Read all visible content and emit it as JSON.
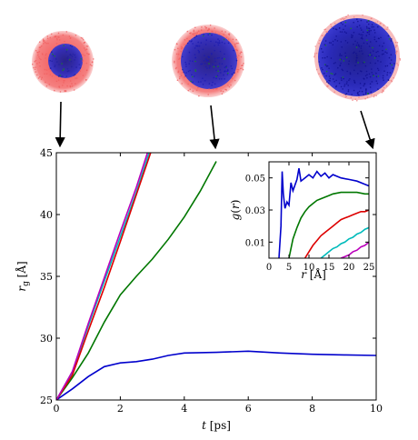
{
  "chart_data": [
    {
      "type": "line",
      "xlabel": "t [ps]",
      "ylabel": "r_g [Å]",
      "xlim": [
        0,
        10
      ],
      "ylim": [
        25,
        45
      ],
      "xticks": [
        0,
        2,
        4,
        6,
        8,
        10
      ],
      "yticks": [
        25,
        30,
        35,
        40,
        45
      ],
      "grid": false,
      "series": [
        {
          "color": "#0000cc",
          "x": [
            0,
            0.5,
            1,
            1.5,
            2,
            2.5,
            3,
            3.5,
            4,
            5,
            6,
            7,
            8,
            9,
            10
          ],
          "y": [
            25,
            25.9,
            26.9,
            27.7,
            28.0,
            28.1,
            28.3,
            28.6,
            28.8,
            28.85,
            28.95,
            28.8,
            28.7,
            28.65,
            28.6
          ]
        },
        {
          "color": "#007700",
          "x": [
            0,
            0.5,
            1,
            1.5,
            2,
            2.5,
            3,
            3.5,
            4,
            4.5,
            5
          ],
          "y": [
            25,
            26.8,
            28.8,
            31.3,
            33.5,
            35.0,
            36.4,
            38.0,
            39.8,
            41.9,
            44.3
          ]
        },
        {
          "color": "#00bbbb",
          "x": [
            0,
            0.5,
            1,
            1.5,
            2,
            2.5,
            2.9
          ],
          "y": [
            25,
            27.2,
            31.0,
            34.6,
            38.2,
            41.8,
            45.0
          ]
        },
        {
          "color": "#dd0000",
          "x": [
            0,
            0.5,
            1,
            1.5,
            2,
            2.5,
            2.95
          ],
          "y": [
            25,
            27.0,
            30.6,
            34.1,
            37.8,
            41.6,
            45.0
          ]
        },
        {
          "color": "#bb00bb",
          "x": [
            0,
            0.5,
            1,
            1.5,
            2,
            2.5,
            2.85
          ],
          "y": [
            25,
            27.3,
            31.2,
            34.9,
            38.6,
            42.2,
            45.0
          ]
        }
      ]
    },
    {
      "type": "line",
      "xlabel": "r [Å]",
      "ylabel": "g(r)",
      "xlim": [
        0,
        25
      ],
      "ylim": [
        0,
        0.06
      ],
      "xticks": [
        0,
        5,
        10,
        15,
        20,
        25
      ],
      "yticks": [
        0.01,
        0.03,
        0.05
      ],
      "grid": false,
      "series": [
        {
          "color": "#0000cc",
          "x": [
            2.5,
            3,
            3.3,
            3.6,
            4,
            4.5,
            5,
            5.5,
            6,
            7,
            7.5,
            8,
            9,
            10,
            11,
            12,
            13,
            14,
            15,
            16,
            18,
            20,
            22,
            24,
            25
          ],
          "y": [
            0.0,
            0.02,
            0.054,
            0.04,
            0.031,
            0.035,
            0.033,
            0.047,
            0.042,
            0.049,
            0.056,
            0.048,
            0.05,
            0.052,
            0.05,
            0.054,
            0.051,
            0.053,
            0.05,
            0.052,
            0.05,
            0.049,
            0.048,
            0.046,
            0.045
          ]
        },
        {
          "color": "#007700",
          "x": [
            5,
            5.5,
            6,
            7,
            8,
            9,
            10,
            11,
            12,
            13,
            14,
            15,
            16,
            18,
            20,
            22,
            24,
            25
          ],
          "y": [
            0.0,
            0.006,
            0.012,
            0.019,
            0.025,
            0.029,
            0.032,
            0.034,
            0.036,
            0.037,
            0.038,
            0.039,
            0.04,
            0.041,
            0.041,
            0.041,
            0.04,
            0.04
          ]
        },
        {
          "color": "#dd0000",
          "x": [
            9,
            10,
            11,
            12,
            13,
            14,
            15,
            16,
            17,
            18,
            19,
            20,
            21,
            22,
            23,
            24,
            25
          ],
          "y": [
            0.0,
            0.004,
            0.008,
            0.011,
            0.014,
            0.016,
            0.018,
            0.02,
            0.022,
            0.024,
            0.025,
            0.026,
            0.027,
            0.028,
            0.029,
            0.029,
            0.03
          ]
        },
        {
          "color": "#00bbbb",
          "x": [
            13,
            14,
            15,
            16,
            17,
            18,
            19,
            20,
            21,
            22,
            23,
            24,
            25
          ],
          "y": [
            0.0,
            0.002,
            0.004,
            0.006,
            0.007,
            0.009,
            0.01,
            0.012,
            0.013,
            0.015,
            0.016,
            0.018,
            0.019
          ]
        },
        {
          "color": "#bb00bb",
          "x": [
            18,
            19,
            20,
            21,
            22,
            23,
            24,
            25
          ],
          "y": [
            0.0,
            0.001,
            0.002,
            0.004,
            0.005,
            0.007,
            0.008,
            0.01
          ]
        }
      ]
    }
  ],
  "snapshots": [
    {
      "name": "snapshot-early",
      "shell_color": "#f06060",
      "core_color": "#2020a0"
    },
    {
      "name": "snapshot-mid",
      "shell_color": "#f06060",
      "core_color": "#1a1ab0"
    },
    {
      "name": "snapshot-late",
      "shell_color": "#f08080",
      "core_color": "#101090"
    }
  ]
}
